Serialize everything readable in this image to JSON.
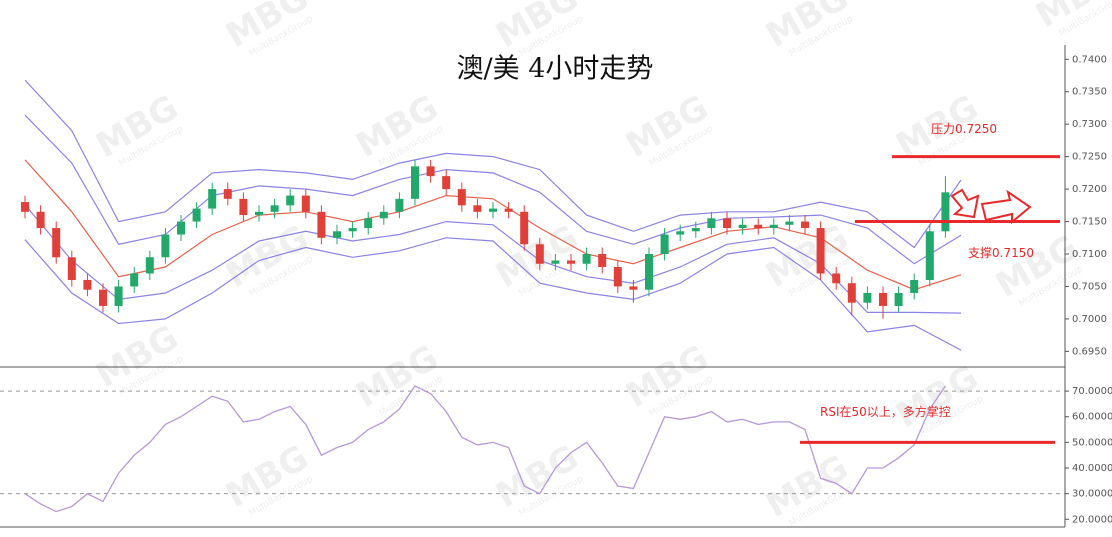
{
  "chart_data": [
    {
      "type": "candlestick",
      "title": "澳/美 4小时走势",
      "watermark": "MBG",
      "watermark_caption": "MultiBankGroup",
      "up_color": "#22a86b",
      "down_color": "#e0403a",
      "ylim": [
        0.6929,
        0.7422
      ],
      "yticks": [
        {
          "value": 0.695,
          "label": "0.6950"
        },
        {
          "value": 0.7,
          "label": "0.7000"
        },
        {
          "value": 0.705,
          "label": "0.7050"
        },
        {
          "value": 0.71,
          "label": "0.7100"
        },
        {
          "value": 0.715,
          "label": "0.7150"
        },
        {
          "value": 0.72,
          "label": "0.7200"
        },
        {
          "value": 0.725,
          "label": "0.7250"
        },
        {
          "value": 0.73,
          "label": "0.7300"
        },
        {
          "value": 0.735,
          "label": "0.7350"
        },
        {
          "value": 0.74,
          "label": "0.7400"
        }
      ],
      "candles": {
        "open": [
          0.718,
          0.7165,
          0.714,
          0.7095,
          0.706,
          0.7045,
          0.702,
          0.705,
          0.707,
          0.7095,
          0.713,
          0.715,
          0.717,
          0.72,
          0.7185,
          0.716,
          0.7165,
          0.7175,
          0.719,
          0.7165,
          0.7125,
          0.7135,
          0.714,
          0.7155,
          0.7165,
          0.7185,
          0.7235,
          0.722,
          0.72,
          0.7175,
          0.7165,
          0.717,
          0.7165,
          0.7115,
          0.7085,
          0.709,
          0.7085,
          0.71,
          0.708,
          0.705,
          0.7045,
          0.71,
          0.713,
          0.7135,
          0.714,
          0.7155,
          0.714,
          0.7145,
          0.714,
          0.7145,
          0.715,
          0.714,
          0.707,
          0.7055,
          0.7025,
          0.704,
          0.702,
          0.704,
          0.706,
          0.7135
        ],
        "high": [
          0.719,
          0.7175,
          0.715,
          0.7105,
          0.707,
          0.7055,
          0.706,
          0.708,
          0.7105,
          0.714,
          0.716,
          0.718,
          0.721,
          0.721,
          0.7195,
          0.7175,
          0.7185,
          0.72,
          0.72,
          0.7175,
          0.7145,
          0.715,
          0.7165,
          0.7175,
          0.7195,
          0.7245,
          0.7245,
          0.723,
          0.721,
          0.7185,
          0.718,
          0.718,
          0.7175,
          0.7125,
          0.71,
          0.71,
          0.711,
          0.711,
          0.709,
          0.706,
          0.711,
          0.714,
          0.7145,
          0.715,
          0.7165,
          0.7165,
          0.7155,
          0.7155,
          0.7155,
          0.716,
          0.716,
          0.715,
          0.708,
          0.7065,
          0.705,
          0.705,
          0.705,
          0.707,
          0.7145,
          0.722
        ],
        "low": [
          0.7155,
          0.713,
          0.7085,
          0.705,
          0.7035,
          0.701,
          0.701,
          0.704,
          0.706,
          0.7085,
          0.712,
          0.714,
          0.716,
          0.7175,
          0.715,
          0.715,
          0.7155,
          0.7165,
          0.7155,
          0.7115,
          0.7115,
          0.7125,
          0.713,
          0.7145,
          0.7155,
          0.7175,
          0.721,
          0.719,
          0.7165,
          0.7155,
          0.7155,
          0.7155,
          0.7105,
          0.7075,
          0.7075,
          0.7075,
          0.7075,
          0.707,
          0.704,
          0.7025,
          0.7035,
          0.709,
          0.712,
          0.7125,
          0.713,
          0.713,
          0.713,
          0.713,
          0.713,
          0.7135,
          0.713,
          0.706,
          0.7045,
          0.7005,
          0.7015,
          0.7,
          0.701,
          0.703,
          0.705,
          0.7125
        ],
        "close": [
          0.7165,
          0.714,
          0.7095,
          0.706,
          0.7045,
          0.702,
          0.705,
          0.707,
          0.7095,
          0.713,
          0.715,
          0.717,
          0.72,
          0.7185,
          0.716,
          0.7165,
          0.7175,
          0.719,
          0.7165,
          0.7125,
          0.7135,
          0.714,
          0.7155,
          0.7165,
          0.7185,
          0.7235,
          0.722,
          0.72,
          0.7175,
          0.7165,
          0.717,
          0.7165,
          0.7115,
          0.7085,
          0.709,
          0.7085,
          0.71,
          0.708,
          0.705,
          0.7045,
          0.71,
          0.713,
          0.7135,
          0.714,
          0.7155,
          0.714,
          0.7145,
          0.714,
          0.7145,
          0.715,
          0.714,
          0.707,
          0.7055,
          0.7025,
          0.704,
          0.702,
          0.704,
          0.706,
          0.7135,
          0.7195
        ]
      },
      "bands": {
        "x": [
          0,
          3,
          6,
          9,
          12,
          15,
          18,
          21,
          24,
          27,
          30,
          33,
          36,
          39,
          42,
          45,
          48,
          51,
          54,
          57,
          60
        ],
        "series": [
          {
            "color": "#8b82e6",
            "values": [
              0.7368,
              0.729,
              0.715,
              0.7165,
              0.7225,
              0.723,
              0.7225,
              0.7215,
              0.724,
              0.7255,
              0.725,
              0.723,
              0.716,
              0.7135,
              0.716,
              0.7165,
              0.7165,
              0.718,
              0.7165,
              0.711,
              0.7214
            ]
          },
          {
            "color": "#8b82e6",
            "values": [
              0.7314,
              0.724,
              0.7115,
              0.713,
              0.719,
              0.7205,
              0.72,
              0.719,
              0.7215,
              0.723,
              0.7225,
              0.7195,
              0.7135,
              0.7115,
              0.714,
              0.7155,
              0.7157,
              0.716,
              0.714,
              0.7085,
              0.7129
            ]
          },
          {
            "color": "#e8604c",
            "values": [
              0.7245,
              0.7165,
              0.7065,
              0.708,
              0.713,
              0.716,
              0.7165,
              0.715,
              0.7165,
              0.719,
              0.7185,
              0.714,
              0.71,
              0.7085,
              0.711,
              0.7135,
              0.7142,
              0.7125,
              0.7075,
              0.7045,
              0.7068
            ]
          },
          {
            "color": "#8b82e6",
            "values": [
              0.7176,
              0.709,
              0.703,
              0.704,
              0.7075,
              0.712,
              0.7135,
              0.712,
              0.713,
              0.715,
              0.7145,
              0.709,
              0.7065,
              0.7055,
              0.708,
              0.7115,
              0.7125,
              0.7085,
              0.701,
              0.701,
              0.7009
            ]
          },
          {
            "color": "#8b82e6",
            "values": [
              0.7122,
              0.704,
              0.6993,
              0.7,
              0.704,
              0.709,
              0.711,
              0.7095,
              0.7105,
              0.7125,
              0.712,
              0.7055,
              0.704,
              0.703,
              0.7055,
              0.71,
              0.711,
              0.706,
              0.698,
              0.699,
              0.6952
            ]
          }
        ]
      },
      "annotations": [
        {
          "text": "压力0.7250",
          "value": 0.725
        },
        {
          "text": "支撑0.7150",
          "value": 0.715
        }
      ]
    },
    {
      "type": "line",
      "color": "#b898d8",
      "ylim": [
        17,
        79
      ],
      "yticks": [
        {
          "value": 20,
          "label": "20.0000"
        },
        {
          "value": 30,
          "label": "30.0000"
        },
        {
          "value": 40,
          "label": "40.0000"
        },
        {
          "value": 50,
          "label": "50.0000"
        },
        {
          "value": 60,
          "label": "60.0000"
        },
        {
          "value": 70,
          "label": "70.0000"
        }
      ],
      "ref_lines": [
        70,
        30
      ],
      "values": [
        30,
        26,
        23,
        25,
        30,
        27,
        38,
        45,
        50,
        57,
        60,
        64,
        68,
        66,
        58,
        59,
        62,
        64,
        57,
        45,
        48,
        50,
        55,
        58,
        63,
        72,
        69,
        62,
        52,
        49,
        50,
        48,
        33,
        30,
        40,
        46,
        50,
        42,
        33,
        32,
        46,
        60,
        59,
        60,
        62,
        58,
        59,
        57,
        58,
        58,
        55,
        36,
        34,
        30,
        40,
        40,
        44,
        49,
        63,
        72
      ],
      "annotations": [
        {
          "text": "RSI在50以上，多方掌控",
          "value": 50
        }
      ]
    }
  ]
}
